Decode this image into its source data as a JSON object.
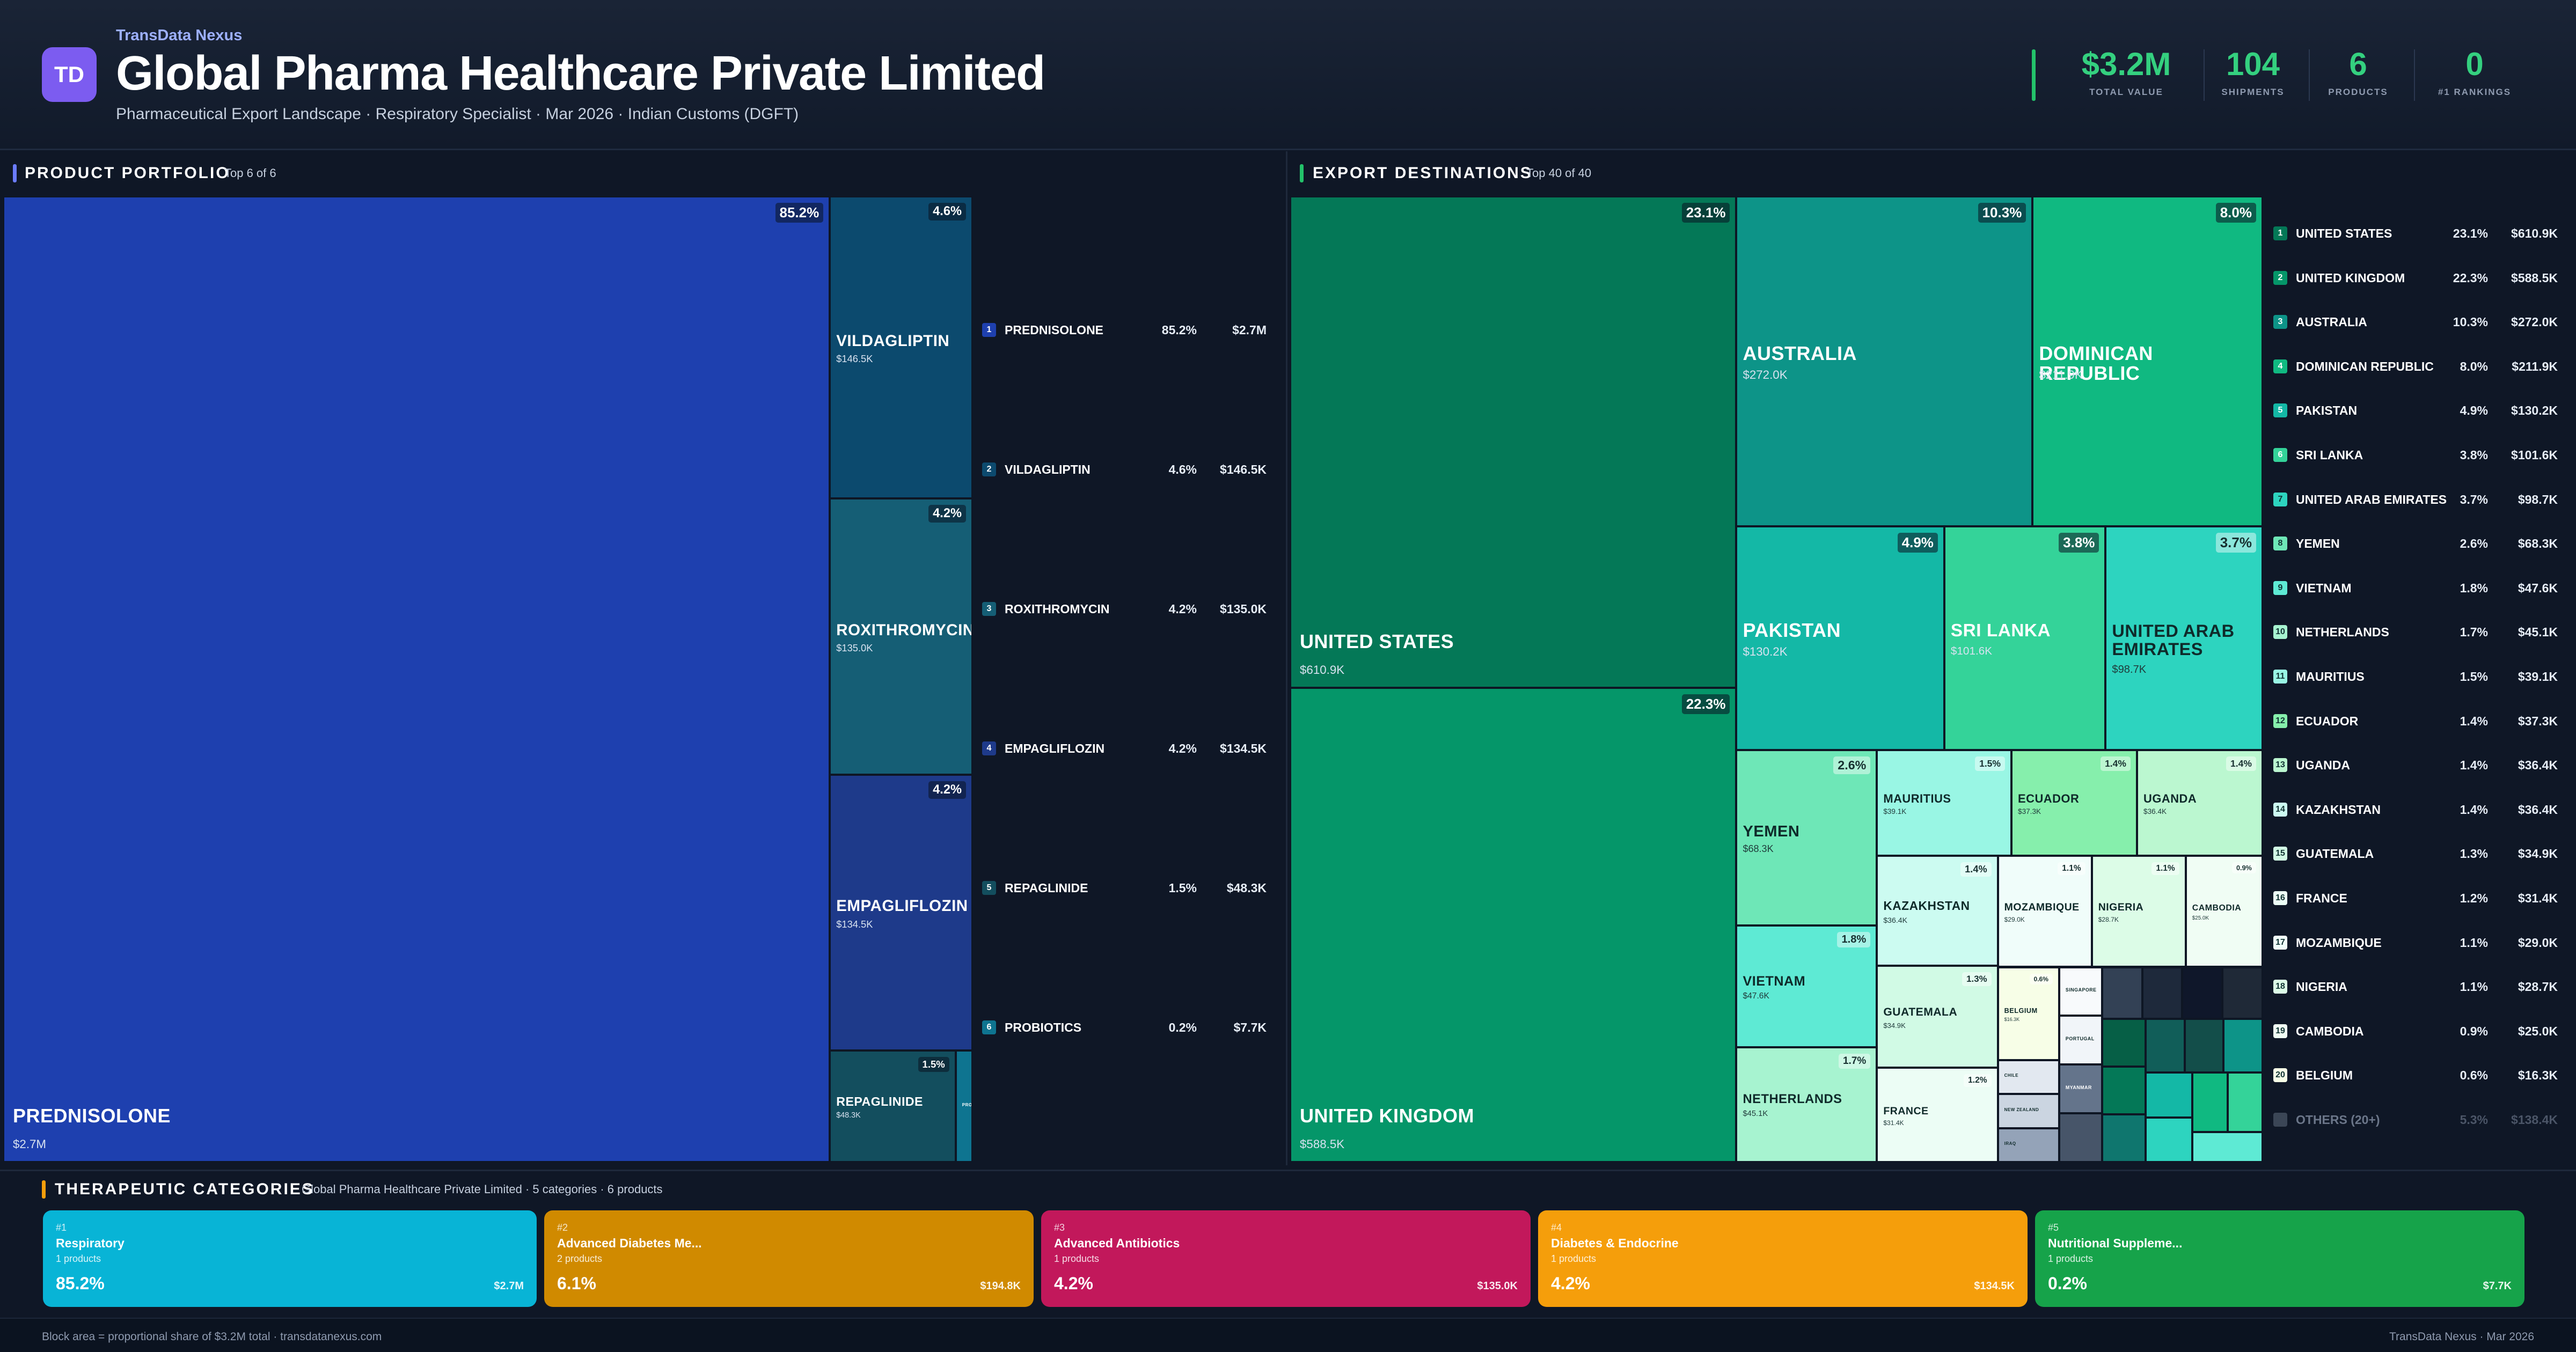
{
  "header": {
    "logo": "TD",
    "brand": "TransData Nexus",
    "title": "Global Pharma Healthcare Private Limited",
    "subtitle": "Pharmaceutical Export Landscape · Respiratory Specialist · Mar 2026 · Indian Customs (DGFT)",
    "kpis": [
      {
        "value": "$3.2M",
        "label": "TOTAL VALUE"
      },
      {
        "value": "104",
        "label": "SHIPMENTS"
      },
      {
        "value": "6",
        "label": "PRODUCTS"
      },
      {
        "value": "0",
        "label": "#1 RANKINGS"
      }
    ],
    "accent": "#34d07f"
  },
  "products": {
    "title": "PRODUCT PORTFOLIO",
    "sub": "Top 6 of 6",
    "bar_color": "#6b7cff"
  },
  "destinations": {
    "title": "EXPORT DESTINATIONS",
    "sub": "Top 40 of 40",
    "bar_color": "#23c26a",
    "others": {
      "rank": "",
      "name": "OTHERS (20+)",
      "pct": "5.3%",
      "value": "$138.4K"
    }
  },
  "categories": {
    "title": "THERAPEUTIC CATEGORIES",
    "sub": "Global Pharma Healthcare Private Limited · 5 categories · 6 products",
    "bar_color": "#f59e0b",
    "items": [
      {
        "rank": "#1",
        "name": "Respiratory",
        "count": "1 products",
        "pct": "85.2%",
        "value": "$2.7M",
        "color": "#08b4d6"
      },
      {
        "rank": "#2",
        "name": "Advanced Diabetes Me...",
        "count": "2 products",
        "pct": "6.1%",
        "value": "$194.8K",
        "color": "#d08a00"
      },
      {
        "rank": "#3",
        "name": "Advanced Antibiotics",
        "count": "1 products",
        "pct": "4.2%",
        "value": "$135.0K",
        "color": "#c2185b"
      },
      {
        "rank": "#4",
        "name": "Diabetes & Endocrine",
        "count": "1 products",
        "pct": "4.2%",
        "value": "$134.5K",
        "color": "#f59e0b"
      },
      {
        "rank": "#5",
        "name": "Nutritional Suppleme...",
        "count": "1 products",
        "pct": "0.2%",
        "value": "$7.7K",
        "color": "#16a34a"
      }
    ]
  },
  "footer": {
    "left": "Block area = proportional share of $3.2M total · transdatanexus.com",
    "right": "TransData Nexus · Mar 2026"
  },
  "chart_data": [
    {
      "type": "treemap",
      "title": "PRODUCT PORTFOLIO",
      "items": [
        {
          "rank": "1",
          "name": "PREDNISOLONE",
          "pct": 85.2,
          "pct_label": "85.2%",
          "value": "$2.7M",
          "color": "#1e40af"
        },
        {
          "rank": "2",
          "name": "VILDAGLIPTIN",
          "pct": 4.6,
          "pct_label": "4.6%",
          "value": "$146.5K",
          "color": "#0c4a6e"
        },
        {
          "rank": "3",
          "name": "ROXITHROMYCIN",
          "pct": 4.2,
          "pct_label": "4.2%",
          "value": "$135.0K",
          "color": "#155e75"
        },
        {
          "rank": "4",
          "name": "EMPAGLIFLOZIN",
          "pct": 4.2,
          "pct_label": "4.2%",
          "value": "$134.5K",
          "color": "#1e3a8a"
        },
        {
          "rank": "5",
          "name": "REPAGLINIDE",
          "pct": 1.5,
          "pct_label": "1.5%",
          "value": "$48.3K",
          "color": "#134e5e"
        },
        {
          "rank": "6",
          "name": "PROBIOTICS",
          "pct": 0.2,
          "pct_label": "0.2%",
          "value": "$7.7K",
          "color": "#0e7490"
        }
      ]
    },
    {
      "type": "treemap",
      "title": "EXPORT DESTINATIONS",
      "items": [
        {
          "rank": "1",
          "name": "UNITED STATES",
          "pct": 23.1,
          "pct_label": "23.1%",
          "value": "$610.9K",
          "color": "#047857"
        },
        {
          "rank": "2",
          "name": "UNITED KINGDOM",
          "pct": 22.3,
          "pct_label": "22.3%",
          "value": "$588.5K",
          "color": "#059669"
        },
        {
          "rank": "3",
          "name": "AUSTRALIA",
          "pct": 10.3,
          "pct_label": "10.3%",
          "value": "$272.0K",
          "color": "#0d9488"
        },
        {
          "rank": "4",
          "name": "DOMINICAN REPUBLIC",
          "pct": 8.0,
          "pct_label": "8.0%",
          "value": "$211.9K",
          "color": "#10b981"
        },
        {
          "rank": "5",
          "name": "PAKISTAN",
          "pct": 4.9,
          "pct_label": "4.9%",
          "value": "$130.2K",
          "color": "#14b8a6"
        },
        {
          "rank": "6",
          "name": "SRI LANKA",
          "pct": 3.8,
          "pct_label": "3.8%",
          "value": "$101.6K",
          "color": "#34d399"
        },
        {
          "rank": "7",
          "name": "UNITED ARAB EMIRATES",
          "pct": 3.7,
          "pct_label": "3.7%",
          "value": "$98.7K",
          "color": "#2dd4bf"
        },
        {
          "rank": "8",
          "name": "YEMEN",
          "pct": 2.6,
          "pct_label": "2.6%",
          "value": "$68.3K",
          "color": "#6ee7b7"
        },
        {
          "rank": "9",
          "name": "VIETNAM",
          "pct": 1.8,
          "pct_label": "1.8%",
          "value": "$47.6K",
          "color": "#5eead4"
        },
        {
          "rank": "10",
          "name": "NETHERLANDS",
          "pct": 1.7,
          "pct_label": "1.7%",
          "value": "$45.1K",
          "color": "#a7f3d0"
        },
        {
          "rank": "11",
          "name": "MAURITIUS",
          "pct": 1.5,
          "pct_label": "1.5%",
          "value": "$39.1K",
          "color": "#99f6e4"
        },
        {
          "rank": "12",
          "name": "ECUADOR",
          "pct": 1.4,
          "pct_label": "1.4%",
          "value": "$37.3K",
          "color": "#86efac"
        },
        {
          "rank": "13",
          "name": "UGANDA",
          "pct": 1.4,
          "pct_label": "1.4%",
          "value": "$36.4K",
          "color": "#bbf7d0"
        },
        {
          "rank": "14",
          "name": "KAZAKHSTAN",
          "pct": 1.4,
          "pct_label": "1.4%",
          "value": "$36.4K",
          "color": "#ccfbf1"
        },
        {
          "rank": "15",
          "name": "GUATEMALA",
          "pct": 1.3,
          "pct_label": "1.3%",
          "value": "$34.9K",
          "color": "#d1fae5"
        },
        {
          "rank": "16",
          "name": "FRANCE",
          "pct": 1.2,
          "pct_label": "1.2%",
          "value": "$31.4K",
          "color": "#ecfdf5"
        },
        {
          "rank": "17",
          "name": "MOZAMBIQUE",
          "pct": 1.1,
          "pct_label": "1.1%",
          "value": "$29.0K",
          "color": "#f0fdfa"
        },
        {
          "rank": "18",
          "name": "NIGERIA",
          "pct": 1.1,
          "pct_label": "1.1%",
          "value": "$28.7K",
          "color": "#dcfce7"
        },
        {
          "rank": "19",
          "name": "CAMBODIA",
          "pct": 0.9,
          "pct_label": "0.9%",
          "value": "$25.0K",
          "color": "#f0fdf4"
        },
        {
          "rank": "20",
          "name": "BELGIUM",
          "pct": 0.6,
          "pct_label": "0.6%",
          "value": "$16.3K",
          "color": "#f7fee7"
        }
      ],
      "small_items": [
        {
          "name": "CHILE",
          "color": "#e2e8f0"
        },
        {
          "name": "NEW ZEALAND",
          "color": "#cbd5e1"
        },
        {
          "name": "IRAQ",
          "color": "#94a3b8"
        },
        {
          "name": "SINGAPORE",
          "color": "#f8fafc"
        },
        {
          "name": "PORTUGAL",
          "color": "#f1f5f9"
        },
        {
          "name": "MYANMAR",
          "color": "#64748b"
        },
        {
          "name": "",
          "color": "#475569"
        },
        {
          "name": "",
          "color": "#334155"
        },
        {
          "name": "",
          "color": "#1e293b"
        },
        {
          "name": "",
          "color": "#0f172a"
        },
        {
          "name": "",
          "color": "#1f2937"
        },
        {
          "name": "",
          "color": "#065f46"
        },
        {
          "name": "",
          "color": "#047857"
        },
        {
          "name": "",
          "color": "#0f766e"
        },
        {
          "name": "",
          "color": "#115e59"
        },
        {
          "name": "",
          "color": "#134e4a"
        },
        {
          "name": "",
          "color": "#0d9488"
        },
        {
          "name": "",
          "color": "#14b8a6"
        },
        {
          "name": "",
          "color": "#2dd4bf"
        },
        {
          "name": "",
          "color": "#10b981"
        },
        {
          "name": "",
          "color": "#34d399"
        },
        {
          "name": "",
          "color": "#5eead4"
        }
      ]
    }
  ]
}
